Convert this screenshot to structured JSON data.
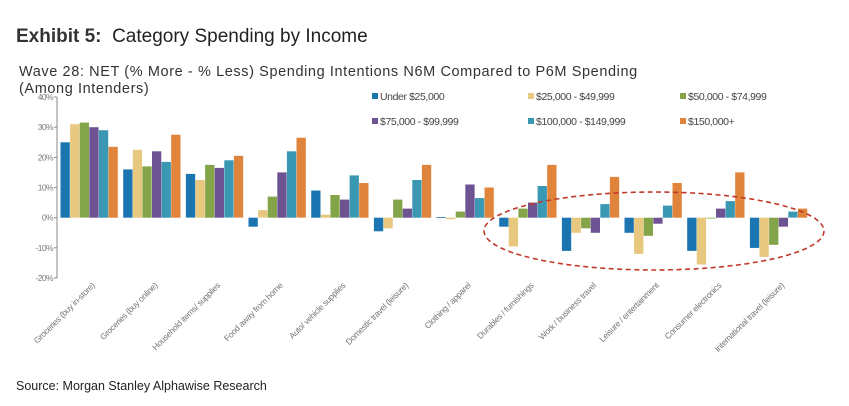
{
  "exhibit": {
    "label": "Exhibit 5:",
    "title": "Category Spending by Income"
  },
  "subtitle_line1": "Wave 28: NET (% More - % Less) Spending Intentions N6M Compared to P6M Spending",
  "subtitle_line2": "(Among Intenders)",
  "source": "Source: Morgan Stanley Alphawise Research",
  "annotation": {
    "type": "dashed-ellipse",
    "color": "#c0392b",
    "highlights": [
      "Durables / furnishings",
      "Work / business travel",
      "Leisure / entertainment",
      "Consumer electronics",
      "International travel (leisure)"
    ]
  },
  "chart_data": {
    "type": "bar",
    "title": "Wave 28: NET (% More - % Less) Spending Intentions N6M Compared to P6M Spending (Among Intenders)",
    "xlabel": "",
    "ylabel": "",
    "ylim": [
      -20,
      40
    ],
    "yticks": [
      -20,
      -10,
      0,
      10,
      20,
      30,
      40
    ],
    "ytick_labels": [
      "-20%",
      "-10%",
      "0%",
      "10%",
      "20%",
      "30%",
      "40%"
    ],
    "grid": false,
    "legend_position": "top-right",
    "categories": [
      "Groceries (buy in-store)",
      "Groceries (buy online)",
      "Household items/ supplies",
      "Food away from home",
      "Auto/ vehicle supplies",
      "Domestic travel (leisure)",
      "Clothing / apparel",
      "Durables / furnishings",
      "Work / business travel",
      "Leisure / entertainment",
      "Consumer electronics",
      "International travel (leisure)"
    ],
    "series": [
      {
        "name": "Under $25,000",
        "color": "#1a75b0",
        "values": [
          25,
          16,
          14.5,
          -3,
          9,
          -4.5,
          0.2,
          -3,
          -11,
          -5,
          -11,
          -10
        ]
      },
      {
        "name": "$25,000 - $49,999",
        "color": "#e8c77e",
        "values": [
          31,
          22.5,
          12.5,
          2.5,
          1,
          -3.5,
          -0.5,
          -9.5,
          -5,
          -12,
          -15.5,
          -13
        ]
      },
      {
        "name": "$50,000 - $74,999",
        "color": "#84a44a",
        "values": [
          31.5,
          17,
          17.5,
          7,
          7.5,
          6,
          2,
          3,
          -3.5,
          -6,
          0,
          -9
        ]
      },
      {
        "name": "$75,000 - $99,999",
        "color": "#6e5393",
        "values": [
          30,
          22,
          16.5,
          15,
          6,
          3,
          11,
          5,
          -5,
          -2,
          3,
          -3
        ]
      },
      {
        "name": "$100,000 - $149,999",
        "color": "#3a98b3",
        "values": [
          29,
          18.5,
          19,
          22,
          14,
          12.5,
          6.5,
          10.5,
          4.5,
          4,
          5.5,
          2
        ]
      },
      {
        "name": "$150,000+",
        "color": "#e0833b",
        "values": [
          23.5,
          27.5,
          20.5,
          26.5,
          11.5,
          17.5,
          10,
          17.5,
          13.5,
          11.5,
          15,
          3
        ]
      }
    ]
  }
}
